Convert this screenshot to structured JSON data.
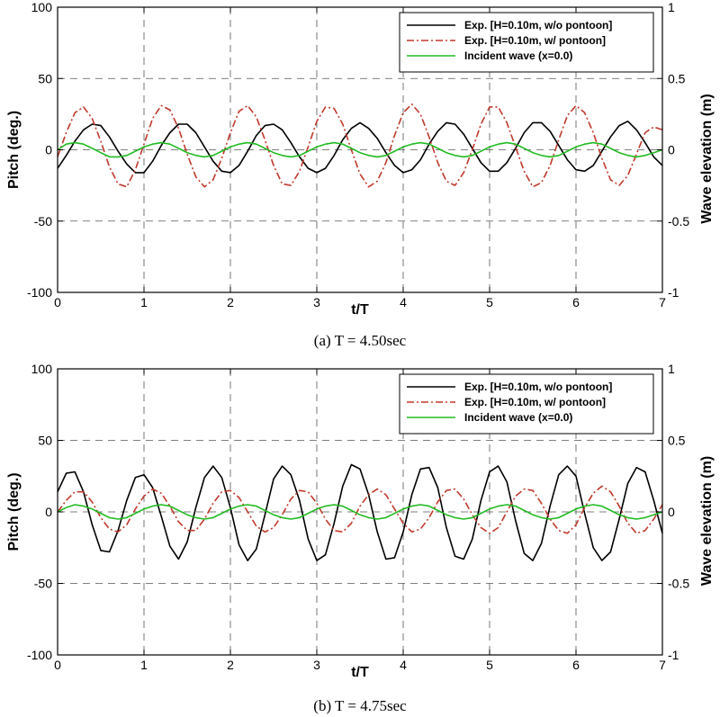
{
  "chart_data": [
    {
      "type": "line",
      "caption": "(a)  T  =  4.50sec",
      "xlabel": "t/T",
      "ylabel": "Pitch (deg.)",
      "ylabel_right": "Wave elevation (m)",
      "xlim": [
        0,
        7
      ],
      "ylim": [
        -100,
        100
      ],
      "ylim_right": [
        -1,
        1
      ],
      "x_ticks": [
        "0",
        "1",
        "2",
        "3",
        "4",
        "5",
        "6",
        "7"
      ],
      "y_ticks": [
        "-100",
        "-50",
        "0",
        "50",
        "100"
      ],
      "y_ticks_right": [
        "-1",
        "-0.5",
        "0",
        "0.5",
        "1"
      ],
      "grid": true,
      "legend_position": "top-right",
      "series": [
        {
          "name": "Exp. [H=0.10m, w/o pontoon]",
          "axis": "left",
          "color": "#000000",
          "style": "solid",
          "x": [
            0,
            0.1,
            0.2,
            0.3,
            0.4,
            0.5,
            0.6,
            0.7,
            0.8,
            0.9,
            1,
            1.1,
            1.2,
            1.3,
            1.4,
            1.5,
            1.6,
            1.7,
            1.8,
            1.9,
            2,
            2.1,
            2.2,
            2.3,
            2.4,
            2.5,
            2.6,
            2.7,
            2.8,
            2.9,
            3,
            3.1,
            3.2,
            3.3,
            3.4,
            3.5,
            3.6,
            3.7,
            3.8,
            3.9,
            4,
            4.1,
            4.2,
            4.3,
            4.4,
            4.5,
            4.6,
            4.7,
            4.8,
            4.9,
            5,
            5.1,
            5.2,
            5.3,
            5.4,
            5.5,
            5.6,
            5.7,
            5.8,
            5.9,
            6,
            6.1,
            6.2,
            6.3,
            6.4,
            6.5,
            6.6,
            6.7,
            6.8,
            6.9,
            7
          ],
          "y": [
            -13,
            -4,
            6,
            14,
            18,
            17,
            9,
            -1,
            -10,
            -16,
            -16,
            -8,
            3,
            12,
            18,
            18,
            12,
            2,
            -8,
            -15,
            -16,
            -11,
            -1,
            10,
            17,
            18,
            14,
            5,
            -5,
            -13,
            -16,
            -13,
            -4,
            7,
            15,
            19,
            15,
            8,
            -2,
            -11,
            -16,
            -14,
            -7,
            4,
            13,
            19,
            18,
            11,
            1,
            -9,
            -15,
            -15,
            -9,
            1,
            12,
            19,
            19,
            13,
            3,
            -7,
            -14,
            -15,
            -11,
            -1,
            9,
            17,
            20,
            14,
            5,
            -5,
            -11
          ]
        },
        {
          "name": "Exp. [H=0.10m, w/ pontoon]",
          "axis": "left",
          "color": "#c0392b",
          "style": "dashdot",
          "x": [
            0,
            0.1,
            0.2,
            0.3,
            0.4,
            0.5,
            0.6,
            0.7,
            0.8,
            0.9,
            1,
            1.1,
            1.2,
            1.3,
            1.4,
            1.5,
            1.6,
            1.7,
            1.8,
            1.9,
            2,
            2.1,
            2.2,
            2.3,
            2.4,
            2.5,
            2.6,
            2.7,
            2.8,
            2.9,
            3,
            3.1,
            3.2,
            3.3,
            3.4,
            3.5,
            3.6,
            3.7,
            3.8,
            3.9,
            4,
            4.1,
            4.2,
            4.3,
            4.4,
            4.5,
            4.6,
            4.7,
            4.8,
            4.9,
            5,
            5.1,
            5.2,
            5.3,
            5.4,
            5.5,
            5.6,
            5.7,
            5.8,
            5.9,
            6,
            6.1,
            6.2,
            6.3,
            6.4,
            6.5,
            6.6,
            6.7,
            6.8,
            6.9,
            7
          ],
          "y": [
            -5,
            12,
            26,
            30,
            22,
            6,
            -12,
            -24,
            -26,
            -14,
            4,
            22,
            31,
            28,
            15,
            -3,
            -19,
            -26,
            -21,
            -6,
            12,
            27,
            31,
            23,
            7,
            -11,
            -24,
            -25,
            -15,
            2,
            20,
            30,
            29,
            18,
            0,
            -17,
            -26,
            -22,
            -9,
            10,
            26,
            32,
            25,
            9,
            -9,
            -22,
            -25,
            -16,
            0,
            18,
            30,
            30,
            19,
            2,
            -15,
            -26,
            -23,
            -11,
            7,
            24,
            31,
            26,
            12,
            -6,
            -21,
            -25,
            -18,
            -3,
            12,
            16,
            14
          ]
        },
        {
          "name": "Incident wave (x=0.0)",
          "axis": "right",
          "color": "#22bb22",
          "style": "solid",
          "x": [
            0,
            0.1,
            0.2,
            0.3,
            0.4,
            0.5,
            0.6,
            0.7,
            0.8,
            0.9,
            1,
            1.1,
            1.2,
            1.3,
            1.4,
            1.5,
            1.6,
            1.7,
            1.8,
            1.9,
            2,
            2.1,
            2.2,
            2.3,
            2.4,
            2.5,
            2.6,
            2.7,
            2.8,
            2.9,
            3,
            3.1,
            3.2,
            3.3,
            3.4,
            3.5,
            3.6,
            3.7,
            3.8,
            3.9,
            4,
            4.1,
            4.2,
            4.3,
            4.4,
            4.5,
            4.6,
            4.7,
            4.8,
            4.9,
            5,
            5.1,
            5.2,
            5.3,
            5.4,
            5.5,
            5.6,
            5.7,
            5.8,
            5.9,
            6,
            6.1,
            6.2,
            6.3,
            6.4,
            6.5,
            6.6,
            6.7,
            6.8,
            6.9,
            7
          ],
          "y": [
            0,
            0.04,
            0.05,
            0.04,
            0.01,
            -0.02,
            -0.05,
            -0.05,
            -0.04,
            -0.01,
            0.02,
            0.04,
            0.05,
            0.04,
            0.01,
            -0.02,
            -0.04,
            -0.05,
            -0.04,
            -0.01,
            0.02,
            0.04,
            0.05,
            0.04,
            0.01,
            -0.02,
            -0.04,
            -0.05,
            -0.04,
            -0.01,
            0.02,
            0.04,
            0.05,
            0.04,
            0.01,
            -0.02,
            -0.04,
            -0.05,
            -0.04,
            -0.01,
            0.02,
            0.04,
            0.05,
            0.04,
            0.01,
            -0.02,
            -0.04,
            -0.05,
            -0.04,
            -0.01,
            0.02,
            0.04,
            0.05,
            0.04,
            0.01,
            -0.02,
            -0.04,
            -0.05,
            -0.04,
            -0.01,
            0.02,
            0.04,
            0.05,
            0.04,
            0.01,
            -0.02,
            -0.04,
            -0.05,
            -0.04,
            -0.02,
            0
          ]
        }
      ]
    },
    {
      "type": "line",
      "caption": "(b)  T  =  4.75sec",
      "xlabel": "t/T",
      "ylabel": "Pitch (deg.)",
      "ylabel_right": "Wave elevation (m)",
      "xlim": [
        0,
        7
      ],
      "ylim": [
        -100,
        100
      ],
      "ylim_right": [
        -1,
        1
      ],
      "x_ticks": [
        "0",
        "1",
        "2",
        "3",
        "4",
        "5",
        "6",
        "7"
      ],
      "y_ticks": [
        "-100",
        "-50",
        "0",
        "50",
        "100"
      ],
      "y_ticks_right": [
        "-1",
        "-0.5",
        "0",
        "0.5",
        "1"
      ],
      "grid": true,
      "legend_position": "top-right",
      "series": [
        {
          "name": "Exp. [H=0.10m, w/o pontoon]",
          "axis": "left",
          "color": "#000000",
          "style": "solid",
          "x": [
            0,
            0.1,
            0.2,
            0.3,
            0.4,
            0.5,
            0.6,
            0.7,
            0.8,
            0.9,
            1,
            1.1,
            1.2,
            1.3,
            1.4,
            1.5,
            1.6,
            1.7,
            1.8,
            1.9,
            2,
            2.1,
            2.2,
            2.3,
            2.4,
            2.5,
            2.6,
            2.7,
            2.8,
            2.9,
            3,
            3.1,
            3.2,
            3.3,
            3.4,
            3.5,
            3.6,
            3.7,
            3.8,
            3.9,
            4,
            4.1,
            4.2,
            4.3,
            4.4,
            4.5,
            4.6,
            4.7,
            4.8,
            4.9,
            5,
            5.1,
            5.2,
            5.3,
            5.4,
            5.5,
            5.6,
            5.7,
            5.8,
            5.9,
            6,
            6.1,
            6.2,
            6.3,
            6.4,
            6.5,
            6.6,
            6.7,
            6.8,
            6.9,
            7
          ],
          "y": [
            14,
            27,
            28,
            14,
            -9,
            -27,
            -28,
            -13,
            8,
            24,
            26,
            17,
            -3,
            -24,
            -33,
            -21,
            3,
            24,
            32,
            24,
            3,
            -23,
            -34,
            -26,
            -2,
            23,
            32,
            26,
            8,
            -19,
            -34,
            -30,
            -8,
            18,
            33,
            30,
            12,
            -14,
            -33,
            -32,
            -14,
            12,
            30,
            31,
            17,
            -11,
            -31,
            -33,
            -19,
            8,
            28,
            32,
            21,
            -6,
            -29,
            -34,
            -22,
            4,
            26,
            32,
            25,
            -1,
            -25,
            -34,
            -28,
            -5,
            20,
            31,
            28,
            8,
            -15
          ]
        },
        {
          "name": "Exp. [H=0.10m, w/ pontoon]",
          "axis": "left",
          "color": "#c0392b",
          "style": "dashdot",
          "x": [
            0,
            0.1,
            0.2,
            0.3,
            0.4,
            0.5,
            0.6,
            0.7,
            0.8,
            0.9,
            1,
            1.1,
            1.2,
            1.3,
            1.4,
            1.5,
            1.6,
            1.7,
            1.8,
            1.9,
            2,
            2.1,
            2.2,
            2.3,
            2.4,
            2.5,
            2.6,
            2.7,
            2.8,
            2.9,
            3,
            3.1,
            3.2,
            3.3,
            3.4,
            3.5,
            3.6,
            3.7,
            3.8,
            3.9,
            4,
            4.1,
            4.2,
            4.3,
            4.4,
            4.5,
            4.6,
            4.7,
            4.8,
            4.9,
            5,
            5.1,
            5.2,
            5.3,
            5.4,
            5.5,
            5.6,
            5.7,
            5.8,
            5.9,
            6,
            6.1,
            6.2,
            6.3,
            6.4,
            6.5,
            6.6,
            6.7,
            6.8,
            6.9,
            7
          ],
          "y": [
            0,
            8,
            14,
            14,
            7,
            -4,
            -12,
            -14,
            -9,
            2,
            11,
            16,
            13,
            4,
            -7,
            -13,
            -13,
            -5,
            6,
            14,
            15,
            10,
            0,
            -10,
            -14,
            -11,
            -2,
            9,
            15,
            14,
            6,
            -5,
            -13,
            -14,
            -8,
            4,
            12,
            16,
            12,
            2,
            -8,
            -14,
            -12,
            -4,
            7,
            15,
            16,
            9,
            -2,
            -11,
            -15,
            -11,
            0,
            11,
            16,
            15,
            6,
            -5,
            -13,
            -15,
            -9,
            3,
            13,
            18,
            14,
            4,
            -8,
            -15,
            -13,
            -5,
            5
          ]
        },
        {
          "name": "Incident wave (x=0.0)",
          "axis": "right",
          "color": "#22bb22",
          "style": "solid",
          "x": [
            0,
            0.1,
            0.2,
            0.3,
            0.4,
            0.5,
            0.6,
            0.7,
            0.8,
            0.9,
            1,
            1.1,
            1.2,
            1.3,
            1.4,
            1.5,
            1.6,
            1.7,
            1.8,
            1.9,
            2,
            2.1,
            2.2,
            2.3,
            2.4,
            2.5,
            2.6,
            2.7,
            2.8,
            2.9,
            3,
            3.1,
            3.2,
            3.3,
            3.4,
            3.5,
            3.6,
            3.7,
            3.8,
            3.9,
            4,
            4.1,
            4.2,
            4.3,
            4.4,
            4.5,
            4.6,
            4.7,
            4.8,
            4.9,
            5,
            5.1,
            5.2,
            5.3,
            5.4,
            5.5,
            5.6,
            5.7,
            5.8,
            5.9,
            6,
            6.1,
            6.2,
            6.3,
            6.4,
            6.5,
            6.6,
            6.7,
            6.8,
            6.9,
            7
          ],
          "y": [
            0,
            0.03,
            0.05,
            0.04,
            0.02,
            -0.01,
            -0.04,
            -0.05,
            -0.04,
            -0.01,
            0.02,
            0.04,
            0.05,
            0.04,
            0.01,
            -0.02,
            -0.04,
            -0.05,
            -0.04,
            -0.01,
            0.02,
            0.04,
            0.05,
            0.04,
            0.01,
            -0.02,
            -0.04,
            -0.05,
            -0.04,
            -0.01,
            0.02,
            0.04,
            0.05,
            0.04,
            0.01,
            -0.02,
            -0.04,
            -0.05,
            -0.04,
            -0.01,
            0.02,
            0.04,
            0.05,
            0.04,
            0.01,
            -0.02,
            -0.04,
            -0.05,
            -0.04,
            -0.01,
            0.02,
            0.04,
            0.05,
            0.04,
            0.01,
            -0.02,
            -0.04,
            -0.05,
            -0.04,
            -0.01,
            0.02,
            0.04,
            0.05,
            0.04,
            0.01,
            -0.02,
            -0.04,
            -0.05,
            -0.04,
            -0.02,
            0
          ]
        }
      ]
    }
  ]
}
